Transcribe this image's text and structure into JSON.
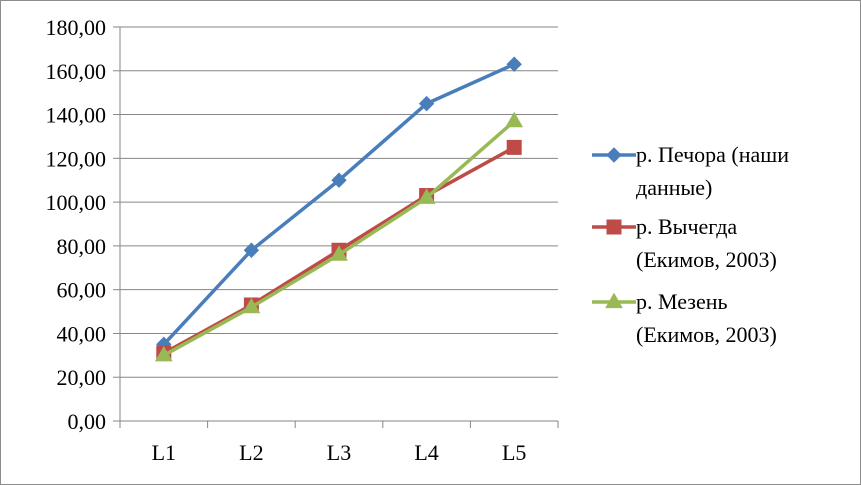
{
  "chart_data": {
    "type": "line",
    "categories": [
      "L1",
      "L2",
      "L3",
      "L4",
      "L5"
    ],
    "series": [
      {
        "name_lines": [
          "р. Печора  (наши",
          "данные)"
        ],
        "color": "#4a7ebb",
        "marker": "diamond",
        "values": [
          35,
          78,
          110,
          145,
          163
        ]
      },
      {
        "name_lines": [
          "р. Вычегда",
          "(Екимов, 2003)"
        ],
        "color": "#be4b48",
        "marker": "square",
        "values": [
          31,
          53,
          78,
          103,
          125
        ]
      },
      {
        "name_lines": [
          "р. Мезень",
          "(Екимов, 2003)"
        ],
        "color": "#98b954",
        "marker": "triangle",
        "values": [
          30,
          52,
          76,
          102,
          137
        ]
      }
    ],
    "ylim": [
      0,
      180
    ],
    "ytick_step": 20,
    "ytick_labels": [
      "0,00",
      "20,00",
      "40,00",
      "60,00",
      "80,00",
      "100,00",
      "120,00",
      "140,00",
      "160,00",
      "180,00"
    ],
    "grid": true,
    "legend_position": "right"
  }
}
